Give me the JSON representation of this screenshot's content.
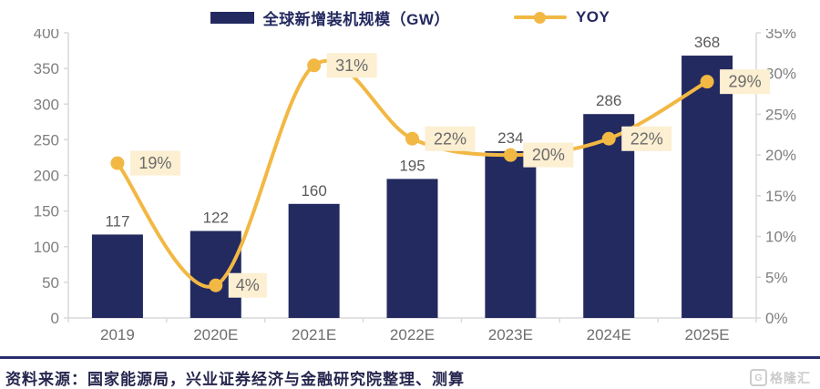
{
  "legend": [
    {
      "label": "全球新增装机规模（GW）",
      "type": "bar",
      "color": "#232a60"
    },
    {
      "label": "YOY",
      "type": "line",
      "color": "#f2b844"
    }
  ],
  "chart_data": {
    "type": "bar+line",
    "title": "",
    "categories": [
      "2019",
      "2020E",
      "2021E",
      "2022E",
      "2023E",
      "2024E",
      "2025E"
    ],
    "series": [
      {
        "name": "全球新增装机规模（GW）",
        "type": "bar",
        "axis": "left",
        "values": [
          117,
          122,
          160,
          195,
          234,
          286,
          368
        ],
        "color": "#232a60"
      },
      {
        "name": "YOY",
        "type": "line",
        "axis": "right",
        "values": [
          19,
          4,
          31,
          22,
          20,
          22,
          29
        ],
        "labels": [
          "19%",
          "4%",
          "31%",
          "22%",
          "20%",
          "22%",
          "29%"
        ],
        "color": "#f2b844",
        "label_bg": "#fcefd2",
        "label_color": "#6b6b6b"
      }
    ],
    "left_axis": {
      "min": 0,
      "max": 400,
      "step": 50
    },
    "right_axis": {
      "min": 0,
      "max": 35,
      "step": 5,
      "suffix": "%"
    },
    "grid": false,
    "legend_position": "top",
    "axis_text_color": "#7f7f7f",
    "bar_label_color": "#595959",
    "axis_line_color": "#d9d9d9"
  },
  "footer": {
    "source_text": "资料来源：国家能源局，兴业证券经济与金融研究院整理、测算"
  },
  "watermark": {
    "icon": "G",
    "text": "格隆汇"
  }
}
